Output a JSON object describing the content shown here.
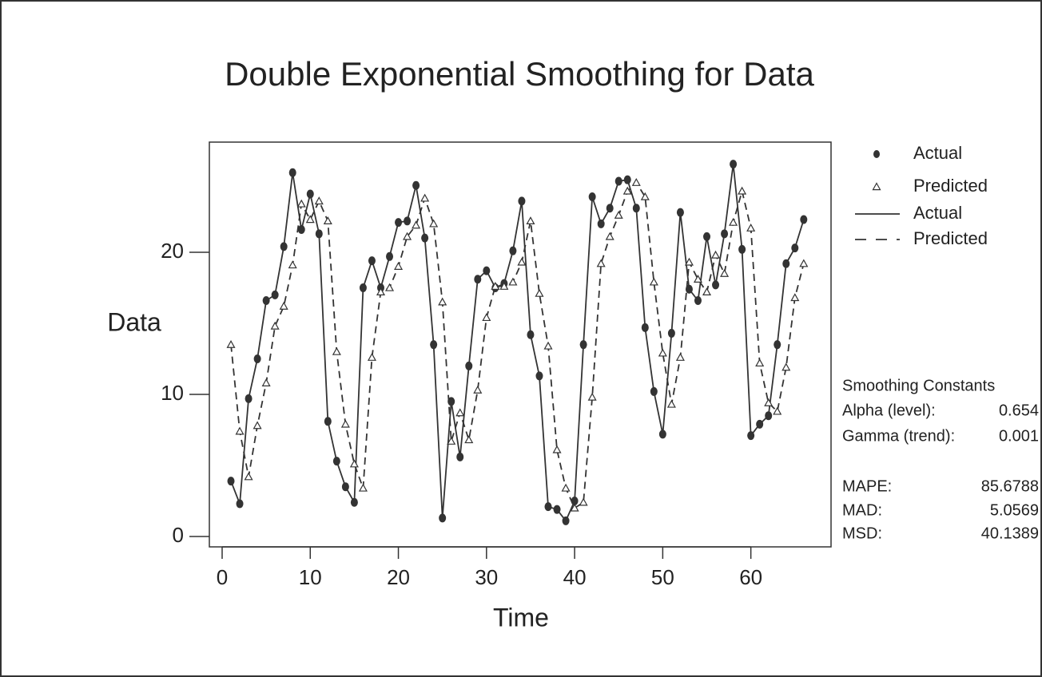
{
  "chart_data": {
    "type": "line",
    "title": "Double Exponential Smoothing for Data",
    "x_label": "Time",
    "y_label": "Data",
    "x": [
      1,
      2,
      3,
      4,
      5,
      6,
      7,
      8,
      9,
      10,
      11,
      12,
      13,
      14,
      15,
      16,
      17,
      18,
      19,
      20,
      21,
      22,
      23,
      24,
      25,
      26,
      27,
      28,
      29,
      30,
      31,
      32,
      33,
      34,
      35,
      36,
      37,
      38,
      39,
      40,
      41,
      42,
      43,
      44,
      45,
      46,
      47,
      48,
      49,
      50,
      51,
      52,
      53,
      54,
      55,
      56,
      57,
      58,
      59,
      60,
      61,
      62,
      63,
      64,
      65,
      66
    ],
    "series": [
      {
        "name": "Actual",
        "color": "#333333",
        "marker": "dot",
        "dash": false,
        "values": [
          3.9,
          2.3,
          9.7,
          12.5,
          16.6,
          17.0,
          20.4,
          25.6,
          21.6,
          24.1,
          21.3,
          8.1,
          5.3,
          3.5,
          2.4,
          17.5,
          19.4,
          17.5,
          19.7,
          22.1,
          22.2,
          24.7,
          21.0,
          13.5,
          1.3,
          9.5,
          5.6,
          12.0,
          18.1,
          18.7,
          17.5,
          17.8,
          20.1,
          23.6,
          14.2,
          11.3,
          2.1,
          1.9,
          1.1,
          2.5,
          13.5,
          23.9,
          22.0,
          23.1,
          25.0,
          25.1,
          23.1,
          14.7,
          10.2,
          7.2,
          14.3,
          22.8,
          17.4,
          16.6,
          21.1,
          17.7,
          21.3,
          26.2,
          20.2,
          7.1,
          7.9,
          8.5,
          13.5,
          19.2,
          20.3,
          22.3
        ]
      },
      {
        "name": "Predicted",
        "color": "#333333",
        "marker": "triangle",
        "dash": true,
        "values": [
          13.5,
          7.4,
          4.2,
          7.8,
          10.8,
          14.8,
          16.2,
          19.1,
          23.4,
          22.3,
          23.6,
          22.2,
          13.0,
          7.9,
          5.1,
          3.4,
          12.6,
          17.2,
          17.5,
          19.0,
          21.1,
          21.9,
          23.8,
          22.0,
          16.5,
          6.7,
          8.7,
          6.8,
          10.3,
          15.4,
          17.6,
          17.6,
          17.9,
          19.3,
          22.2,
          17.1,
          13.4,
          6.1,
          3.4,
          2.0,
          2.4,
          9.8,
          19.2,
          21.1,
          22.6,
          24.3,
          24.9,
          23.9,
          17.9,
          12.9,
          9.3,
          12.6,
          19.3,
          18.1,
          17.2,
          19.8,
          18.5,
          22.1,
          24.3,
          21.7,
          12.2,
          9.4,
          8.8,
          11.9,
          16.8,
          19.2
        ]
      }
    ],
    "xlim": [
      -1.45,
      69.1
    ],
    "ylim": [
      -0.73,
      27.75
    ],
    "xticks": [
      0,
      10,
      20,
      30,
      40,
      50,
      60
    ],
    "yticks": [
      0,
      10,
      20
    ],
    "stats": {
      "title": "Smoothing Constants",
      "rows": [
        {
          "label": "Alpha (level):",
          "value": 0.654
        },
        {
          "label": "Gamma (trend):",
          "value": 0.001
        },
        {
          "label": "MAPE:",
          "value": 85.6788
        },
        {
          "label": "MAD:",
          "value": 5.0569
        },
        {
          "label": "MSD:",
          "value": 40.1389
        }
      ]
    }
  }
}
